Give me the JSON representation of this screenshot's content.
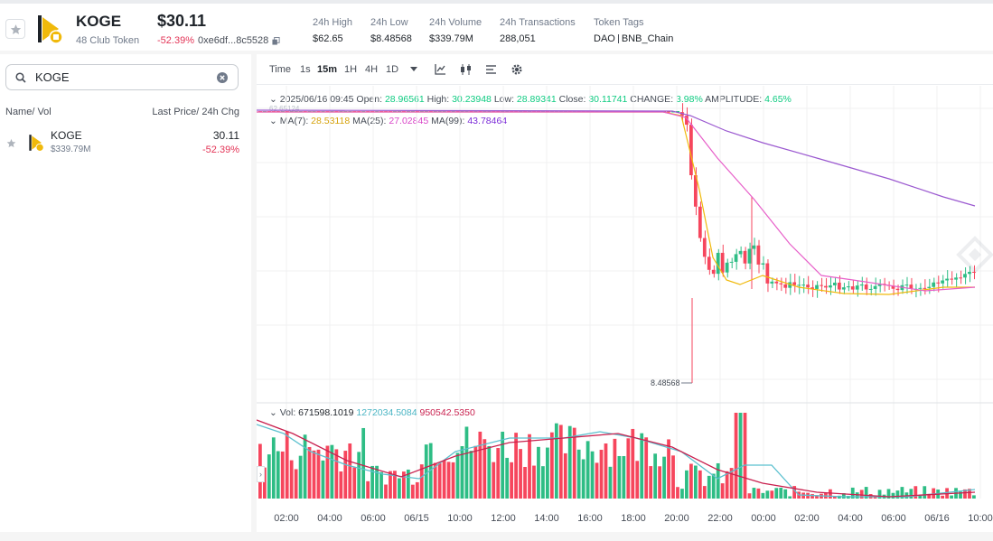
{
  "header": {
    "token_name": "KOGE",
    "token_sub": "48 Club Token",
    "price": "$30.11",
    "change": "-52.39%",
    "address": "0xe6df...8c5528",
    "stats": [
      {
        "label": "24h High",
        "value": "$62.65"
      },
      {
        "label": "24h Low",
        "value": "$8.48568"
      },
      {
        "label": "24h Volume",
        "value": "$339.79M"
      },
      {
        "label": "24h Transactions",
        "value": "288,051"
      }
    ],
    "tags_label": "Token Tags",
    "tags": [
      "DAO",
      "BNB_Chain"
    ]
  },
  "sidebar": {
    "search_value": "KOGE",
    "col_left": "Name/ Vol",
    "col_right": "Last Price/ 24h Chg",
    "row": {
      "name": "KOGE",
      "vol": "$339.79M",
      "price": "30.11",
      "change": "-52.39%"
    }
  },
  "toolbar": {
    "time_label": "Time",
    "intervals": [
      "1s",
      "15m",
      "1H",
      "4H",
      "1D"
    ],
    "active_interval": "15m"
  },
  "ohlc": {
    "date": "2025/06/16 09:45",
    "open_label": "Open:",
    "open": "28.96561",
    "high_label": "High:",
    "high": "30.23948",
    "low_label": "Low:",
    "low": "28.89341",
    "close_label": "Close:",
    "close": "30.11741",
    "change_label": "CHANGE:",
    "change": "3.98%",
    "amp_label": "AMPLITUDE:",
    "amp": "4.65%"
  },
  "ma": {
    "ma7_label": "MA(7):",
    "ma7": "28.53118",
    "ma25_label": "MA(25):",
    "ma25": "27.02845",
    "ma99_label": "MA(99):",
    "ma99": "43.78464"
  },
  "vol": {
    "label": "Vol:",
    "v1": "671598.1019",
    "v2": "1272034.5084",
    "v3": "950542.5350"
  },
  "chart": {
    "high_marker": "62.65124",
    "low_marker": "8.48568",
    "x_ticks": [
      "02:00",
      "04:00",
      "06:00",
      "06/15",
      "10:00",
      "12:00",
      "14:00",
      "16:00",
      "18:00",
      "20:00",
      "22:00",
      "00:00",
      "02:00",
      "04:00",
      "06:00",
      "06/16",
      "10:00"
    ],
    "colors": {
      "up": "#2ebd85",
      "down": "#f6465d",
      "ma7": "#f0b90b",
      "ma25": "#e75fc9",
      "ma99": "#9b59d0",
      "vol_ma1": "#5bc0cf",
      "vol_ma2": "#c9214f"
    }
  }
}
